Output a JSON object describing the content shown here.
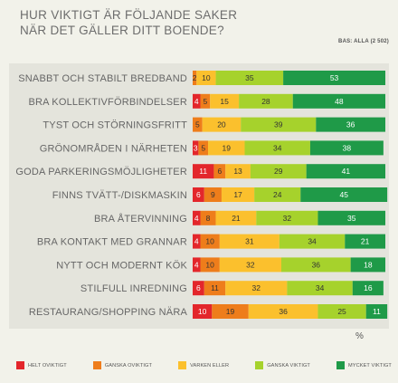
{
  "header": {
    "title_line1": "HUR VIKTIGT ÄR FÖLJANDE SAKER",
    "title_line2": "NÄR DET GÄLLER DITT BOENDE?",
    "base": "BAS: ALLA (2 502)"
  },
  "unit_label": "%",
  "colors": {
    "helt_oviktigt": "#e3262b",
    "ganska_oviktigt": "#ee7d1b",
    "varken_eller": "#fbc02d",
    "ganska_viktigt": "#a6d22c",
    "mycket_viktigt": "#1f9a48"
  },
  "chart_data": {
    "type": "bar",
    "orientation": "horizontal",
    "stacked": true,
    "xlim": [
      0,
      100
    ],
    "categories": [
      "SNABBT OCH STABILT BREDBAND",
      "BRA KOLLEKTIVFÖRBINDELSER",
      "TYST OCH STÖRNINGSFRITT",
      "GRÖNOMRÅDEN I NÄRHETEN",
      "GODA PARKERINGSMÖJLIGHETER",
      "FINNS TVÄTT-/DISKMASKIN",
      "BRA ÅTERVINNING",
      "BRA KONTAKT MED GRANNAR",
      "NYTT OCH MODERNT KÖK",
      "STILFULL INREDNING",
      "RESTAURANG/SHOPPING NÄRA"
    ],
    "series": [
      {
        "name": "HELT OVIKTIGT",
        "color": "#e3262b",
        "values": [
          null,
          4,
          null,
          3,
          11,
          6,
          4,
          4,
          4,
          6,
          10
        ]
      },
      {
        "name": "GANSKA OVIKTIGT",
        "color": "#ee7d1b",
        "values": [
          2,
          5,
          5,
          5,
          6,
          9,
          8,
          10,
          10,
          11,
          19
        ]
      },
      {
        "name": "VARKEN ELLER",
        "color": "#fbc02d",
        "values": [
          10,
          15,
          20,
          19,
          13,
          17,
          21,
          31,
          32,
          32,
          36
        ]
      },
      {
        "name": "GANSKA VIKTIGT",
        "color": "#a6d22c",
        "values": [
          35,
          28,
          39,
          34,
          29,
          24,
          32,
          34,
          36,
          34,
          25
        ]
      },
      {
        "name": "MYCKET VIKTIGT",
        "color": "#1f9a48",
        "values": [
          53,
          48,
          36,
          38,
          41,
          45,
          35,
          21,
          18,
          16,
          11
        ]
      }
    ]
  }
}
